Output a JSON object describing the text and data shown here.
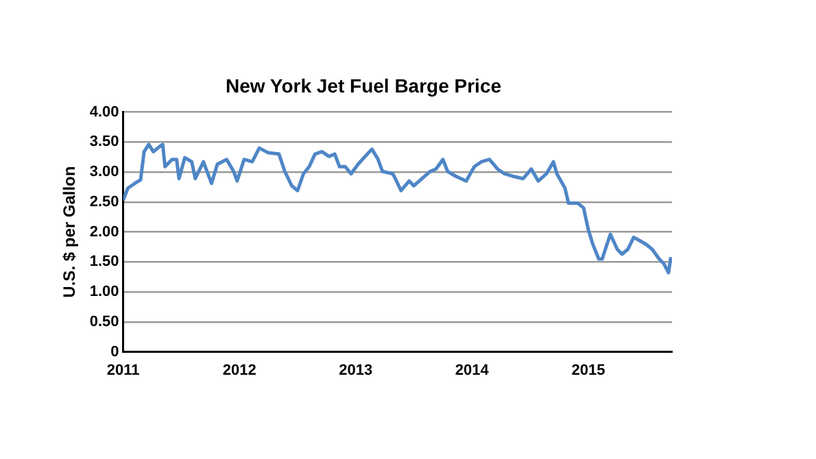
{
  "chart_data": {
    "type": "line",
    "title": "New York Jet Fuel Barge Price",
    "ylabel": "U.S. $ per Gallon",
    "series": [
      {
        "color": "#4f86c6",
        "x": [
          2011.0,
          2011.04,
          2011.1,
          2011.15,
          2011.18,
          2011.22,
          2011.26,
          2011.31,
          2011.34,
          2011.36,
          2011.42,
          2011.46,
          2011.48,
          2011.53,
          2011.59,
          2011.62,
          2011.69,
          2011.76,
          2011.81,
          2011.89,
          2011.95,
          2011.98,
          2012.04,
          2012.11,
          2012.17,
          2012.25,
          2012.34,
          2012.39,
          2012.45,
          2012.5,
          2012.55,
          2012.6,
          2012.65,
          2012.71,
          2012.77,
          2012.82,
          2012.86,
          2012.91,
          2012.96,
          2013.02,
          2013.1,
          2013.14,
          2013.19,
          2013.23,
          2013.32,
          2013.39,
          2013.46,
          2013.5,
          2013.57,
          2013.64,
          2013.69,
          2013.75,
          2013.79,
          2013.86,
          2013.95,
          2014.02,
          2014.08,
          2014.15,
          2014.22,
          2014.28,
          2014.35,
          2014.44,
          2014.51,
          2014.57,
          2014.64,
          2014.7,
          2014.73,
          2014.8,
          2014.83,
          2014.91,
          2014.96,
          2015.0,
          2015.04,
          2015.09,
          2015.12,
          2015.16,
          2015.19,
          2015.25,
          2015.29,
          2015.34,
          2015.39,
          2015.43,
          2015.5,
          2015.55,
          2015.61,
          2015.65,
          2015.69,
          2015.71
        ],
        "values": [
          2.53,
          2.73,
          2.81,
          2.87,
          3.34,
          3.46,
          3.34,
          3.42,
          3.46,
          3.09,
          3.21,
          3.21,
          2.89,
          3.24,
          3.17,
          2.89,
          3.17,
          2.81,
          3.13,
          3.21,
          3.01,
          2.85,
          3.21,
          3.17,
          3.4,
          3.32,
          3.3,
          3.01,
          2.77,
          2.69,
          2.97,
          3.09,
          3.3,
          3.34,
          3.26,
          3.3,
          3.09,
          3.09,
          2.97,
          3.13,
          3.3,
          3.38,
          3.22,
          3.01,
          2.97,
          2.69,
          2.85,
          2.77,
          2.89,
          3.01,
          3.05,
          3.21,
          3.01,
          2.93,
          2.85,
          3.09,
          3.17,
          3.21,
          3.05,
          2.97,
          2.93,
          2.89,
          3.05,
          2.85,
          2.97,
          3.17,
          2.97,
          2.73,
          2.48,
          2.48,
          2.4,
          2.04,
          1.79,
          1.55,
          1.55,
          1.79,
          1.96,
          1.71,
          1.63,
          1.71,
          1.91,
          1.87,
          1.79,
          1.71,
          1.55,
          1.47,
          1.32,
          1.58
        ]
      }
    ],
    "xlim": [
      2011,
      2015.72
    ],
    "xticks": [
      2011,
      2012,
      2013,
      2014,
      2015
    ],
    "ylim": [
      0,
      4
    ],
    "yticks": [
      0,
      {
        "value": 0.5,
        "label": "0.50"
      },
      {
        "value": 1,
        "label": "1.00"
      },
      {
        "value": 1.5,
        "label": "1.50"
      },
      {
        "value": 2,
        "label": "2.00"
      },
      {
        "value": 2.5,
        "label": "2.50"
      },
      {
        "value": 3,
        "label": "3.00"
      },
      {
        "value": 3.5,
        "label": "3.50"
      },
      {
        "value": 4,
        "label": "4.00"
      }
    ],
    "grid": "y",
    "legend": false,
    "marker": "none",
    "line_style": "solid"
  }
}
